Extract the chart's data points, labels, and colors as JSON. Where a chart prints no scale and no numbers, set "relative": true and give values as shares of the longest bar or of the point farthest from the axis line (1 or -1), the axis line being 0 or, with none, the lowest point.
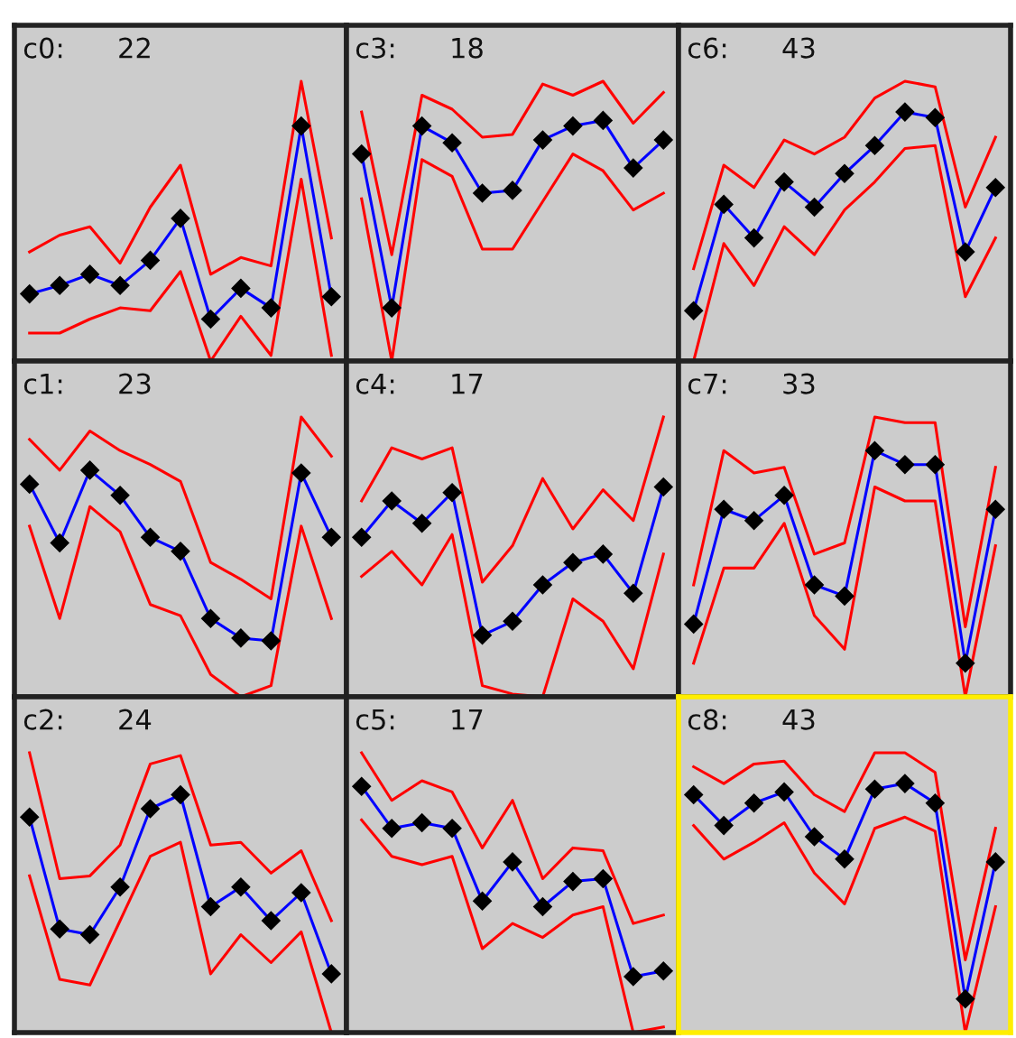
{
  "chart_data": [
    {
      "type": "line",
      "relative": true,
      "title": "c0:      22",
      "categories": [
        null,
        null,
        null,
        null,
        null,
        null,
        null,
        null,
        null,
        null,
        null
      ],
      "series": [
        {
          "color": "#ff0000",
          "marker": "none",
          "values": [
            0.39,
            0.45,
            0.48,
            0.35,
            0.55,
            0.7,
            0.31,
            0.37,
            0.34,
            1.0,
            0.44
          ]
        },
        {
          "color": "#ff0000",
          "marker": "none",
          "values": [
            0.1,
            0.1,
            0.15,
            0.19,
            0.18,
            0.32,
            0.0,
            0.16,
            0.02,
            0.65,
            0.02
          ]
        },
        {
          "color": "#0000ff",
          "marker": "diamond",
          "values": [
            0.24,
            0.27,
            0.31,
            0.27,
            0.36,
            0.51,
            0.15,
            0.26,
            0.19,
            0.84,
            0.23
          ]
        }
      ]
    },
    {
      "type": "line",
      "relative": true,
      "title": "c3:      18",
      "categories": [
        null,
        null,
        null,
        null,
        null,
        null,
        null,
        null,
        null,
        null,
        null
      ],
      "series": [
        {
          "color": "#ff0000",
          "marker": "none",
          "values": [
            0.89,
            0.38,
            0.95,
            0.9,
            0.8,
            0.81,
            0.99,
            0.95,
            1.0,
            0.85,
            0.96
          ]
        },
        {
          "color": "#ff0000",
          "marker": "none",
          "values": [
            0.58,
            0.0,
            0.72,
            0.66,
            0.4,
            0.4,
            0.57,
            0.74,
            0.68,
            0.54,
            0.6
          ]
        },
        {
          "color": "#0000ff",
          "marker": "diamond",
          "values": [
            0.74,
            0.19,
            0.84,
            0.78,
            0.6,
            0.61,
            0.79,
            0.84,
            0.86,
            0.69,
            0.79
          ]
        }
      ]
    },
    {
      "type": "line",
      "relative": true,
      "title": "c6:      43",
      "categories": [
        null,
        null,
        null,
        null,
        null,
        null,
        null,
        null,
        null,
        null,
        null
      ],
      "series": [
        {
          "color": "#ff0000",
          "marker": "none",
          "values": [
            0.33,
            0.7,
            0.62,
            0.79,
            0.74,
            0.8,
            0.94,
            1.0,
            0.98,
            0.55,
            0.8
          ]
        },
        {
          "color": "#ff0000",
          "marker": "none",
          "values": [
            0.0,
            0.42,
            0.27,
            0.48,
            0.38,
            0.54,
            0.64,
            0.76,
            0.77,
            0.23,
            0.44
          ]
        },
        {
          "color": "#0000ff",
          "marker": "diamond",
          "values": [
            0.18,
            0.56,
            0.44,
            0.64,
            0.55,
            0.67,
            0.77,
            0.89,
            0.87,
            0.39,
            0.62
          ]
        }
      ]
    },
    {
      "type": "line",
      "relative": true,
      "title": "c1:      23",
      "categories": [
        null,
        null,
        null,
        null,
        null,
        null,
        null,
        null,
        null,
        null,
        null
      ],
      "series": [
        {
          "color": "#ff0000",
          "marker": "none",
          "values": [
            0.92,
            0.81,
            0.95,
            0.88,
            0.83,
            0.77,
            0.48,
            0.42,
            0.35,
            1.0,
            0.86
          ]
        },
        {
          "color": "#ff0000",
          "marker": "none",
          "values": [
            0.61,
            0.28,
            0.68,
            0.59,
            0.33,
            0.29,
            0.08,
            0.0,
            0.04,
            0.61,
            0.28
          ]
        },
        {
          "color": "#0000ff",
          "marker": "diamond",
          "values": [
            0.76,
            0.55,
            0.81,
            0.72,
            0.57,
            0.52,
            0.28,
            0.21,
            0.2,
            0.8,
            0.57
          ]
        }
      ]
    },
    {
      "type": "line",
      "relative": true,
      "title": "c4:      17",
      "categories": [
        null,
        null,
        null,
        null,
        null,
        null,
        null,
        null,
        null,
        null,
        null
      ],
      "series": [
        {
          "color": "#ff0000",
          "marker": "none",
          "values": [
            0.7,
            0.89,
            0.85,
            0.89,
            0.41,
            0.54,
            0.78,
            0.6,
            0.74,
            0.63,
            1.0
          ]
        },
        {
          "color": "#ff0000",
          "marker": "none",
          "values": [
            0.43,
            0.52,
            0.4,
            0.58,
            0.04,
            0.01,
            0.0,
            0.35,
            0.27,
            0.1,
            0.51
          ]
        },
        {
          "color": "#0000ff",
          "marker": "diamond",
          "values": [
            0.57,
            0.7,
            0.62,
            0.73,
            0.22,
            0.27,
            0.4,
            0.48,
            0.51,
            0.37,
            0.75
          ]
        }
      ]
    },
    {
      "type": "line",
      "relative": true,
      "title": "c7:      33",
      "categories": [
        null,
        null,
        null,
        null,
        null,
        null,
        null,
        null,
        null,
        null,
        null
      ],
      "series": [
        {
          "color": "#ff0000",
          "marker": "none",
          "values": [
            0.4,
            0.88,
            0.8,
            0.82,
            0.51,
            0.55,
            1.0,
            0.98,
            0.98,
            0.25,
            0.82
          ]
        },
        {
          "color": "#ff0000",
          "marker": "none",
          "values": [
            0.12,
            0.46,
            0.46,
            0.62,
            0.29,
            0.17,
            0.75,
            0.7,
            0.7,
            0.0,
            0.54
          ]
        },
        {
          "color": "#0000ff",
          "marker": "diamond",
          "values": [
            0.26,
            0.67,
            0.63,
            0.72,
            0.4,
            0.36,
            0.88,
            0.83,
            0.83,
            0.12,
            0.67
          ]
        }
      ]
    },
    {
      "type": "line",
      "relative": true,
      "title": "c2:      24",
      "categories": [
        null,
        null,
        null,
        null,
        null,
        null,
        null,
        null,
        null,
        null,
        null
      ],
      "series": [
        {
          "color": "#ff0000",
          "marker": "none",
          "values": [
            1.0,
            0.55,
            0.56,
            0.67,
            0.96,
            0.99,
            0.67,
            0.68,
            0.57,
            0.65,
            0.4
          ]
        },
        {
          "color": "#ff0000",
          "marker": "none",
          "values": [
            0.56,
            0.19,
            0.17,
            0.4,
            0.63,
            0.68,
            0.21,
            0.35,
            0.25,
            0.36,
            0.0
          ]
        },
        {
          "color": "#0000ff",
          "marker": "diamond",
          "values": [
            0.77,
            0.37,
            0.35,
            0.52,
            0.8,
            0.85,
            0.45,
            0.52,
            0.4,
            0.5,
            0.21
          ]
        }
      ]
    },
    {
      "type": "line",
      "relative": true,
      "title": "c5:      17",
      "categories": [
        null,
        null,
        null,
        null,
        null,
        null,
        null,
        null,
        null,
        null,
        null
      ],
      "series": [
        {
          "color": "#ff0000",
          "marker": "none",
          "values": [
            1.0,
            0.83,
            0.9,
            0.86,
            0.66,
            0.83,
            0.55,
            0.66,
            0.65,
            0.39,
            0.42
          ]
        },
        {
          "color": "#ff0000",
          "marker": "none",
          "values": [
            0.76,
            0.63,
            0.6,
            0.63,
            0.3,
            0.39,
            0.34,
            0.42,
            0.45,
            0.0,
            0.02
          ]
        },
        {
          "color": "#0000ff",
          "marker": "diamond",
          "values": [
            0.88,
            0.73,
            0.75,
            0.73,
            0.47,
            0.61,
            0.45,
            0.54,
            0.55,
            0.2,
            0.22
          ]
        }
      ]
    },
    {
      "type": "line",
      "relative": true,
      "title": "c8:      43",
      "categories": [
        null,
        null,
        null,
        null,
        null,
        null,
        null,
        null,
        null,
        null,
        null
      ],
      "series": [
        {
          "color": "#ff0000",
          "marker": "none",
          "values": [
            0.95,
            0.89,
            0.96,
            0.97,
            0.85,
            0.79,
            1.0,
            1.0,
            0.93,
            0.26,
            0.73
          ]
        },
        {
          "color": "#ff0000",
          "marker": "none",
          "values": [
            0.74,
            0.62,
            0.68,
            0.75,
            0.57,
            0.46,
            0.73,
            0.77,
            0.72,
            0.0,
            0.45
          ]
        },
        {
          "color": "#0000ff",
          "marker": "diamond",
          "values": [
            0.85,
            0.74,
            0.82,
            0.86,
            0.7,
            0.62,
            0.87,
            0.89,
            0.82,
            0.12,
            0.61
          ]
        }
      ]
    }
  ]
}
